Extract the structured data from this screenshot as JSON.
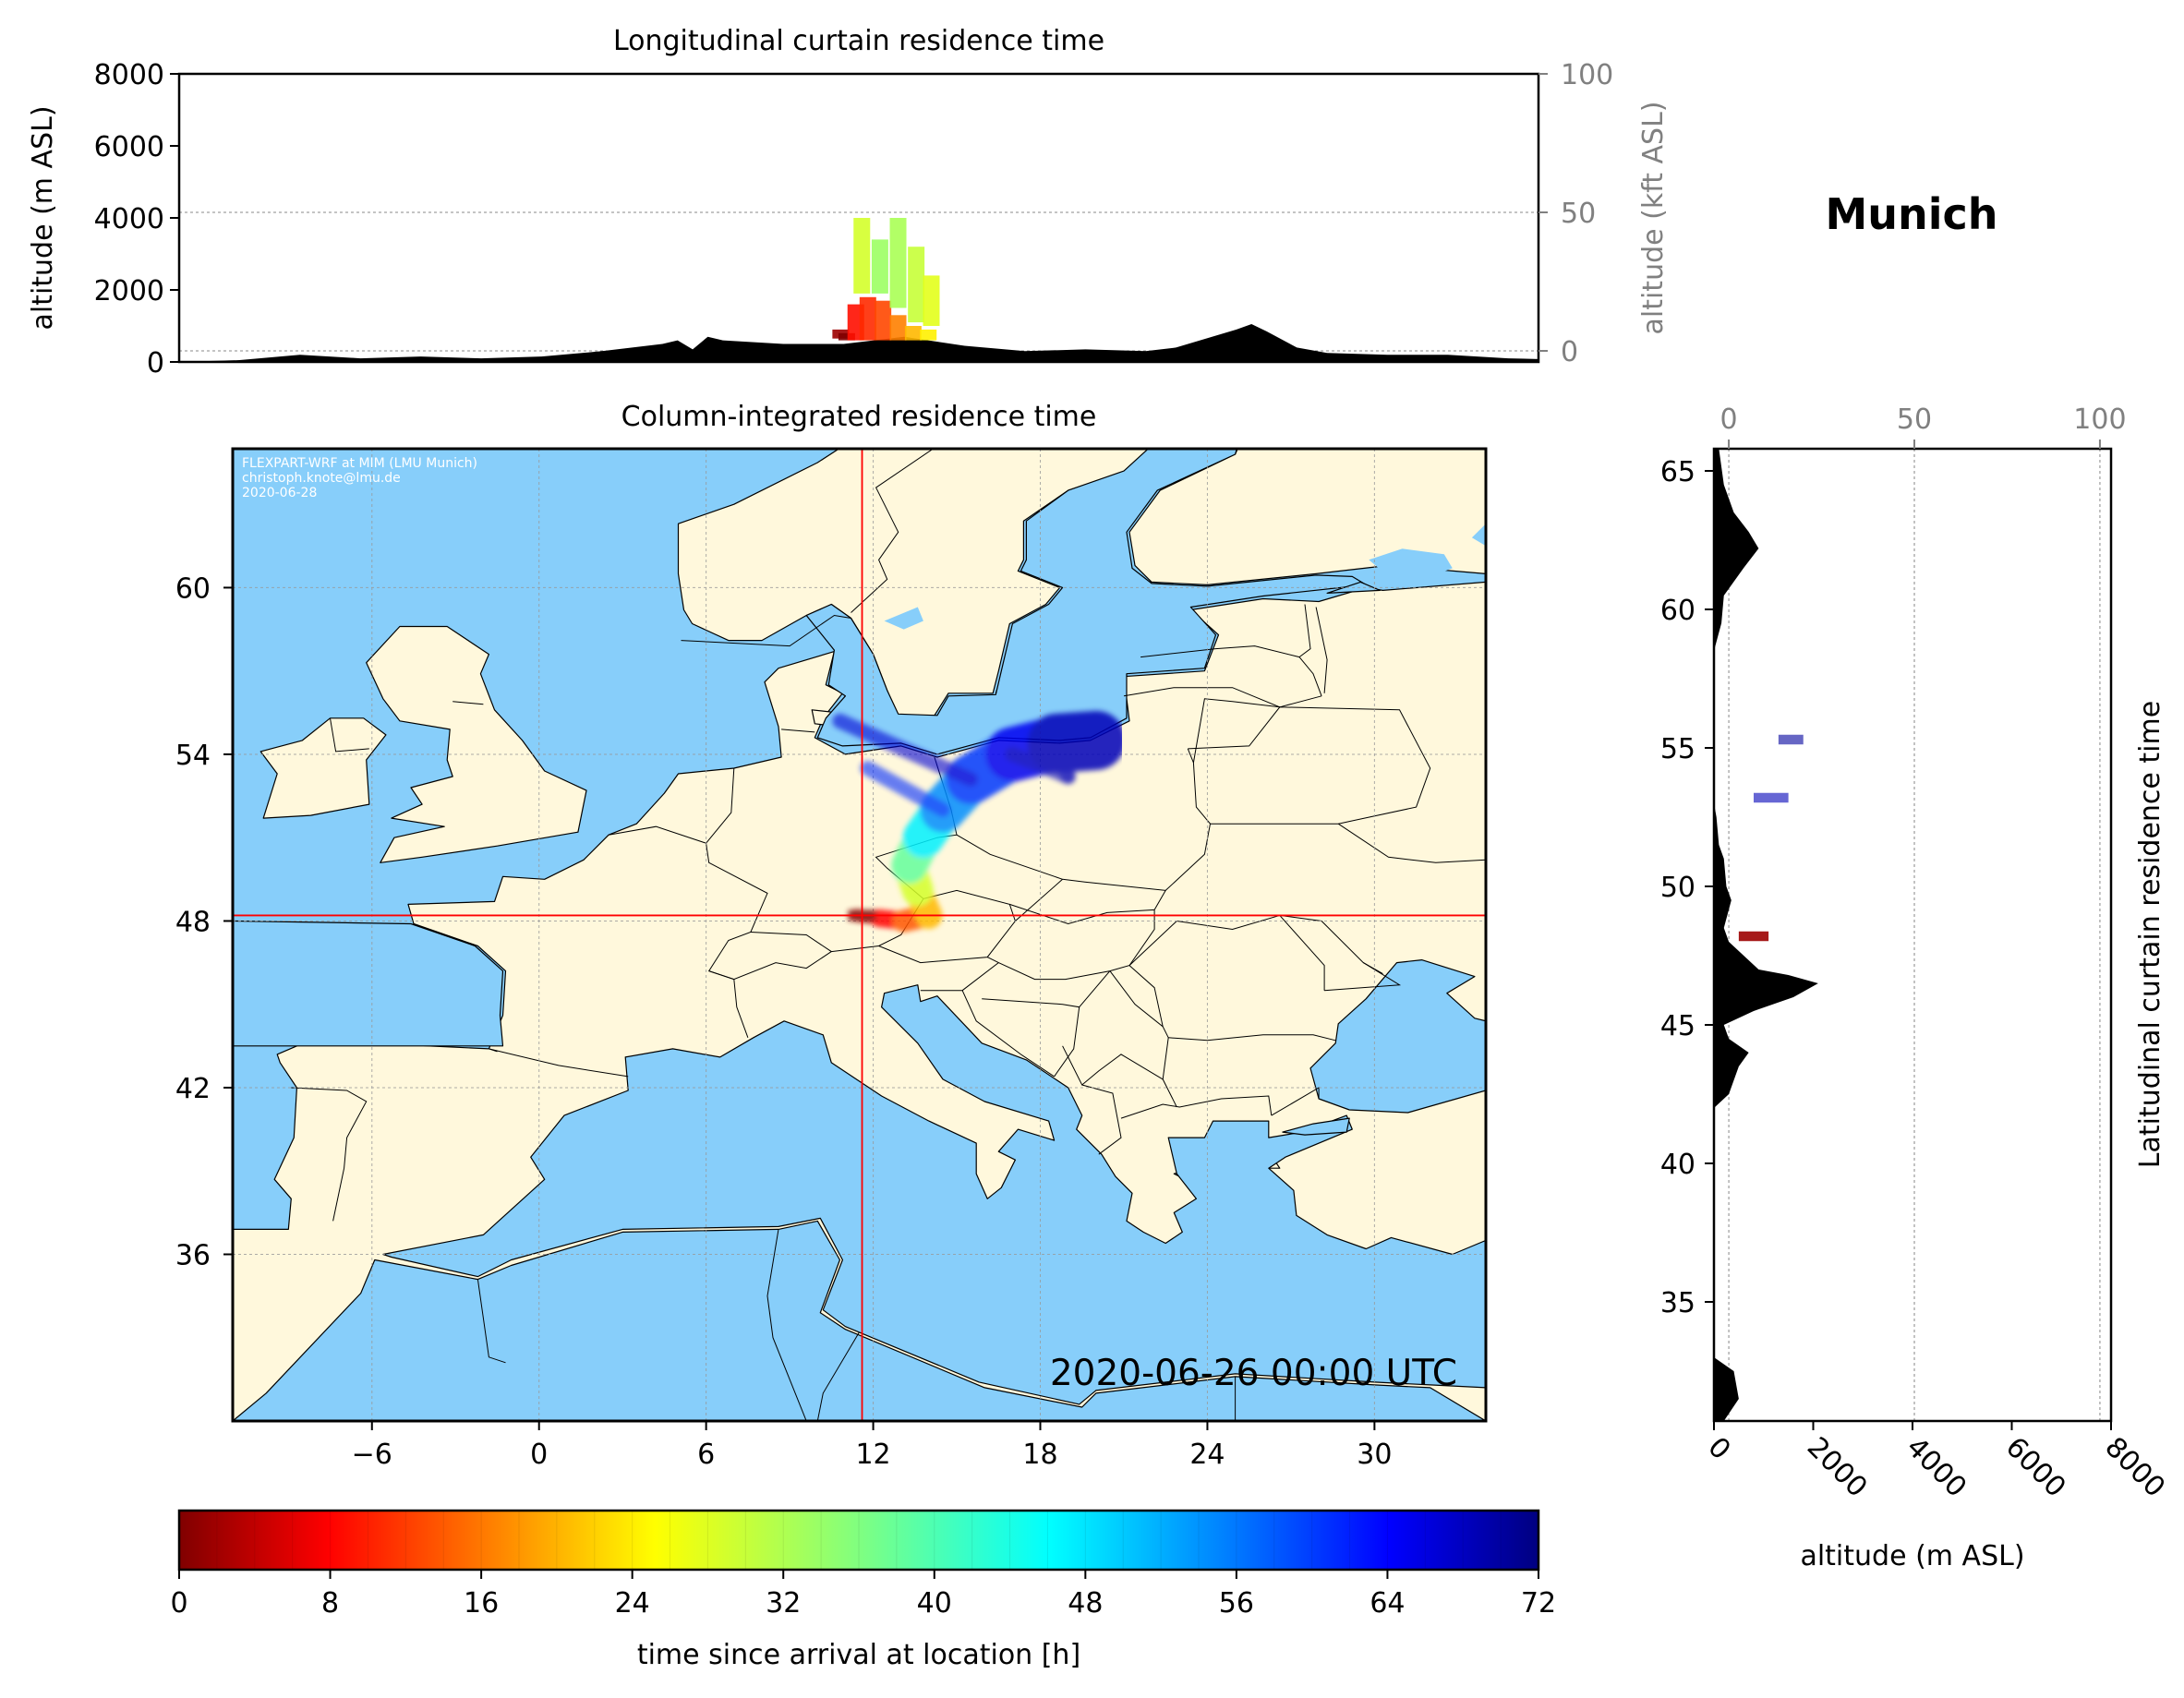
{
  "location": "Munich",
  "colors": {
    "ocean": "#87CEFA",
    "land": "#FFF8DC",
    "crosshair": "#FF0000",
    "terrain": "#000000",
    "secondary_axis": "#808080"
  },
  "chart_data": [
    {
      "type": "area",
      "name": "longitudinal-curtain",
      "title": "Longitudinal curtain residence time",
      "ylabel": "altitude (m ASL)",
      "ylim": [
        0,
        8000
      ],
      "yticks": [
        "0",
        "2000",
        "4000",
        "6000",
        "8000"
      ],
      "secondary_ylabel": "altitude (kft ASL)",
      "secondary_ylim": [
        -4,
        100
      ],
      "secondary_yticks": [
        "0",
        "50",
        "100"
      ],
      "xlim": [
        -10,
        35
      ],
      "grid": true,
      "terrain": {
        "x": [
          -10,
          -8,
          -6,
          -4,
          -2,
          0,
          2,
          4,
          6,
          6.5,
          7,
          7.5,
          8,
          10,
          12,
          14,
          16,
          18,
          20,
          22,
          23,
          24,
          25,
          25.5,
          26,
          27,
          28,
          30,
          32,
          34,
          35
        ],
        "y": [
          0,
          50,
          200,
          100,
          150,
          100,
          150,
          300,
          500,
          600,
          350,
          700,
          600,
          500,
          500,
          700,
          450,
          300,
          350,
          300,
          400,
          650,
          900,
          1050,
          850,
          400,
          250,
          200,
          200,
          100,
          80
        ]
      },
      "plume_cells": [
        {
          "lon": 11.9,
          "alt_low": 650,
          "alt_high": 900,
          "hours": 2
        },
        {
          "lon": 12.1,
          "alt_low": 600,
          "alt_high": 800,
          "hours": 0
        },
        {
          "lon": 12.4,
          "alt_low": 600,
          "alt_high": 1600,
          "hours": 10
        },
        {
          "lon": 12.8,
          "alt_low": 600,
          "alt_high": 1800,
          "hours": 12
        },
        {
          "lon": 13.3,
          "alt_low": 600,
          "alt_high": 1700,
          "hours": 14
        },
        {
          "lon": 13.8,
          "alt_low": 600,
          "alt_high": 1300,
          "hours": 18
        },
        {
          "lon": 14.3,
          "alt_low": 600,
          "alt_high": 1000,
          "hours": 22
        },
        {
          "lon": 14.8,
          "alt_low": 600,
          "alt_high": 900,
          "hours": 26
        },
        {
          "lon": 12.6,
          "alt_low": 1900,
          "alt_high": 4000,
          "hours": 30
        },
        {
          "lon": 13.2,
          "alt_low": 1900,
          "alt_high": 3400,
          "hours": 34
        },
        {
          "lon": 13.8,
          "alt_low": 1500,
          "alt_high": 4000,
          "hours": 33
        },
        {
          "lon": 14.4,
          "alt_low": 1100,
          "alt_high": 3200,
          "hours": 31
        },
        {
          "lon": 14.9,
          "alt_low": 1000,
          "alt_high": 2400,
          "hours": 29
        }
      ]
    },
    {
      "type": "heatmap",
      "name": "column-residence-map",
      "title": "Column-integrated residence time",
      "xlim": [
        -11,
        34
      ],
      "ylim": [
        30,
        65
      ],
      "xticks": [
        -6,
        0,
        6,
        12,
        18,
        24,
        30
      ],
      "yticks": [
        36,
        42,
        48,
        54,
        60
      ],
      "xtick_labels": [
        "−6",
        "0",
        "6",
        "12",
        "18",
        "24",
        "30"
      ],
      "ytick_labels": [
        "36",
        "42",
        "48",
        "54",
        "60"
      ],
      "grid": true,
      "credit_lines": [
        "FLEXPART-WRF at MIM (LMU Munich)",
        "christoph.knote@lmu.de",
        "2020-06-28"
      ],
      "timestamp": "2020-06-26 00:00 UTC",
      "release_point": {
        "lon": 11.6,
        "lat": 48.2
      },
      "plume_track": [
        {
          "lon": 11.4,
          "lat": 48.2,
          "hours": 0
        },
        {
          "lon": 12.2,
          "lat": 48.1,
          "hours": 6
        },
        {
          "lon": 13.1,
          "lat": 48.0,
          "hours": 12
        },
        {
          "lon": 14.0,
          "lat": 48.2,
          "hours": 18
        },
        {
          "lon": 13.6,
          "lat": 49.1,
          "hours": 26
        },
        {
          "lon": 13.3,
          "lat": 50.0,
          "hours": 34
        },
        {
          "lon": 13.8,
          "lat": 51.0,
          "hours": 42
        },
        {
          "lon": 14.5,
          "lat": 52.0,
          "hours": 50
        },
        {
          "lon": 15.5,
          "lat": 53.1,
          "hours": 56
        },
        {
          "lon": 17.0,
          "lat": 54.0,
          "hours": 62
        },
        {
          "lon": 18.6,
          "lat": 54.4,
          "hours": 66
        },
        {
          "lon": 20.0,
          "lat": 54.5,
          "hours": 70
        },
        {
          "lon": 19.0,
          "lat": 53.2,
          "hours": 68
        },
        {
          "lon": 11.8,
          "lat": 53.5,
          "hours": 60
        },
        {
          "lon": 10.8,
          "lat": 55.2,
          "hours": 66
        }
      ]
    },
    {
      "type": "area",
      "name": "latitudinal-curtain",
      "title": "Latitudinal curtain residence time",
      "xlabel": "altitude (m ASL)",
      "xlim": [
        0,
        8000
      ],
      "xticks": [
        "0",
        "2000",
        "4000",
        "6000",
        "8000"
      ],
      "secondary_xlim": [
        -4,
        103
      ],
      "secondary_xticks": [
        "0",
        "50",
        "100"
      ],
      "ylim": [
        30.7,
        65.8
      ],
      "yticks": [
        "35",
        "40",
        "45",
        "50",
        "55",
        "60",
        "65"
      ],
      "grid": true,
      "terrain": {
        "lat": [
          30.7,
          31.5,
          32.5,
          33,
          42,
          42.5,
          43.5,
          44.0,
          44.5,
          45.0,
          45.5,
          46.0,
          46.5,
          46.8,
          47.0,
          47.5,
          48.0,
          48.5,
          49.5,
          50.0,
          51.0,
          51.5,
          52.5,
          53,
          58.5,
          59.5,
          60.5,
          61.5,
          62.2,
          62.8,
          63.5,
          64.5,
          65.8
        ],
        "alt": [
          200,
          500,
          400,
          0,
          0,
          300,
          500,
          700,
          300,
          200,
          800,
          1600,
          2100,
          1500,
          900,
          600,
          300,
          200,
          350,
          250,
          200,
          100,
          50,
          0,
          0,
          150,
          200,
          600,
          900,
          700,
          400,
          200,
          100
        ]
      },
      "plume_cells": [
        {
          "lat": 55.3,
          "alt_low": 1300,
          "alt_high": 1800,
          "hours": 70
        },
        {
          "lat": 53.2,
          "alt_low": 800,
          "alt_high": 1500,
          "hours": 68
        },
        {
          "lat": 48.2,
          "alt_low": 500,
          "alt_high": 1100,
          "hours": 2
        }
      ]
    },
    {
      "type": "colorbar",
      "name": "time-colorbar",
      "label": "time since arrival at location [h]",
      "range": [
        0,
        72
      ],
      "ticks": [
        "0",
        "8",
        "16",
        "24",
        "32",
        "40",
        "48",
        "56",
        "64",
        "72"
      ]
    }
  ]
}
